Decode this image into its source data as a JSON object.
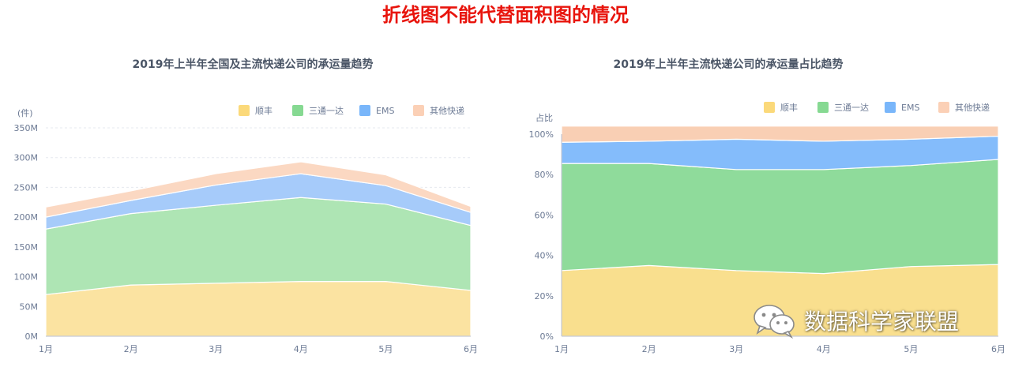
{
  "page_title": "折线图不能代替面积图的情况",
  "title_color": "#e8140c",
  "watermark_text": "数据科学家联盟",
  "watermark_icon": "wechat-icon",
  "colors": {
    "顺丰": "#fbe3a1",
    "三通一达": "#aee5b4",
    "EMS": "#a6cbfa",
    "其他快递": "#fbd8c2",
    "顺丰_legend": "#fbd97a",
    "三通一达_legend": "#86d992",
    "EMS_legend": "#79b6fa",
    "其他快递_legend": "#fbd0b6",
    "顺丰_pct": "#f9df8e",
    "三通一达_pct": "#8fdb9b",
    "EMS_pct": "#84bcfb",
    "其他快递_pct": "#f9cfb4"
  },
  "chart_data": [
    {
      "type": "area",
      "stacked": true,
      "title": "2019年上半年全国及主流快递公司的承运量趋势",
      "unit_label": "(件)",
      "categories": [
        "1月",
        "2月",
        "3月",
        "4月",
        "5月",
        "6月"
      ],
      "y_ticks": [
        "0M",
        "50M",
        "100M",
        "150M",
        "200M",
        "250M",
        "300M",
        "350M"
      ],
      "ylim": [
        0,
        350
      ],
      "grid": true,
      "legend_position": "top-right",
      "series": [
        {
          "name": "顺丰",
          "values": [
            70,
            86,
            89,
            92,
            92,
            77
          ]
        },
        {
          "name": "三通一达",
          "values": [
            110,
            120,
            131,
            141,
            130,
            109
          ]
        },
        {
          "name": "EMS",
          "values": [
            20,
            22,
            34,
            40,
            31,
            22
          ]
        },
        {
          "name": "其他快递",
          "values": [
            17,
            16,
            19,
            20,
            18,
            10
          ]
        }
      ]
    },
    {
      "type": "area",
      "stacked": true,
      "percent": true,
      "title": "2019年上半年主流快递公司的承运量占比趋势",
      "unit_label": "占比",
      "categories": [
        "1月",
        "2月",
        "3月",
        "4月",
        "5月",
        "6月"
      ],
      "y_ticks": [
        "0%",
        "20%",
        "40%",
        "60%",
        "80%",
        "100%"
      ],
      "ylim": [
        0,
        100
      ],
      "grid": false,
      "legend_position": "top-right",
      "series": [
        {
          "name": "顺丰",
          "values": [
            32.5,
            35,
            32.5,
            31,
            34.5,
            35.5
          ]
        },
        {
          "name": "三通一达",
          "values": [
            53,
            50.5,
            50,
            51.5,
            50,
            52
          ]
        },
        {
          "name": "EMS",
          "values": [
            10.5,
            11,
            15,
            14,
            13,
            11.5
          ]
        },
        {
          "name": "其他快递",
          "values": [
            8,
            7.5,
            6.5,
            7.5,
            6.5,
            5
          ]
        }
      ]
    }
  ]
}
